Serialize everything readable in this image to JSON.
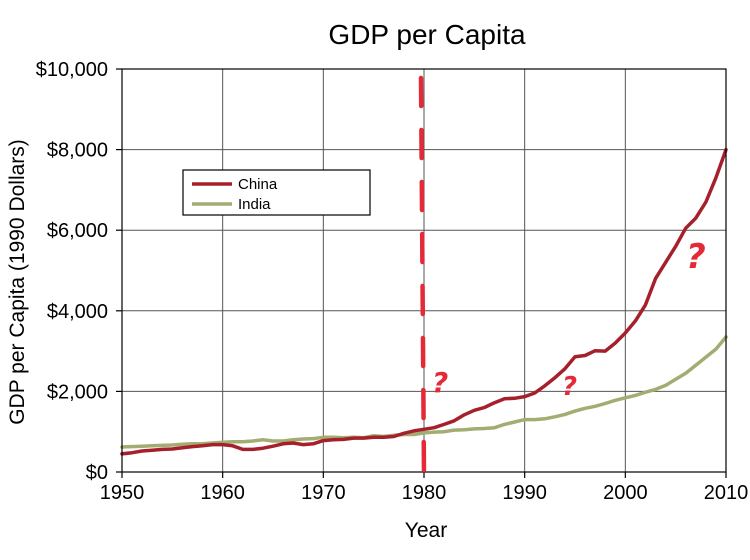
{
  "chart_data": {
    "type": "line",
    "title": "GDP per Capita",
    "xlabel": "Year",
    "ylabel": "GDP per Capita (1990 Dollars)",
    "xlim": [
      1950,
      2010
    ],
    "ylim": [
      0,
      10000
    ],
    "x_ticks": [
      1950,
      1960,
      1970,
      1980,
      1990,
      2000,
      2010
    ],
    "x_tick_labels": [
      "1950",
      "1960",
      "1970",
      "1980",
      "1990",
      "2000",
      "2010"
    ],
    "y_ticks": [
      0,
      2000,
      4000,
      6000,
      8000,
      10000
    ],
    "y_tick_labels": [
      "$0",
      "$2,000",
      "$4,000",
      "$6,000",
      "$8,000",
      "$10,000"
    ],
    "grid": true,
    "legend_position": "upper-left",
    "x": [
      1950,
      1951,
      1952,
      1953,
      1954,
      1955,
      1956,
      1957,
      1958,
      1959,
      1960,
      1961,
      1962,
      1963,
      1964,
      1965,
      1966,
      1967,
      1968,
      1969,
      1970,
      1971,
      1972,
      1973,
      1974,
      1975,
      1976,
      1977,
      1978,
      1979,
      1980,
      1981,
      1982,
      1983,
      1984,
      1985,
      1986,
      1987,
      1988,
      1989,
      1990,
      1991,
      1992,
      1993,
      1994,
      1995,
      1996,
      1997,
      1998,
      1999,
      2000,
      2001,
      2002,
      2003,
      2004,
      2005,
      2006,
      2007,
      2008,
      2009,
      2010
    ],
    "series": [
      {
        "name": "China",
        "color": "#a6202c",
        "values": [
          448,
          480,
          520,
          540,
          560,
          570,
          600,
          630,
          650,
          680,
          680,
          650,
          560,
          560,
          590,
          640,
          700,
          720,
          680,
          700,
          780,
          800,
          810,
          840,
          840,
          860,
          860,
          880,
          960,
          1020,
          1060,
          1100,
          1180,
          1270,
          1420,
          1530,
          1600,
          1720,
          1820,
          1830,
          1870,
          1960,
          2140,
          2340,
          2560,
          2860,
          2890,
          3010,
          3000,
          3200,
          3450,
          3750,
          4150,
          4800,
          5200,
          5600,
          6050,
          6300,
          6700,
          7300,
          8000
        ]
      },
      {
        "name": "India",
        "color": "#a2ad72",
        "values": [
          620,
          630,
          640,
          650,
          660,
          670,
          690,
          700,
          700,
          720,
          740,
          750,
          750,
          770,
          800,
          770,
          770,
          800,
          820,
          830,
          860,
          860,
          850,
          860,
          850,
          900,
          880,
          910,
          930,
          930,
          970,
          990,
          1000,
          1040,
          1050,
          1070,
          1080,
          1100,
          1180,
          1240,
          1300,
          1300,
          1320,
          1370,
          1430,
          1510,
          1580,
          1630,
          1700,
          1780,
          1840,
          1900,
          1980,
          2050,
          2150,
          2300,
          2450,
          2650,
          2850,
          3050,
          3350
        ]
      }
    ],
    "annotations": {
      "divider_year": 1980,
      "divider_color": "#e32a36",
      "question_mark": "?"
    }
  }
}
